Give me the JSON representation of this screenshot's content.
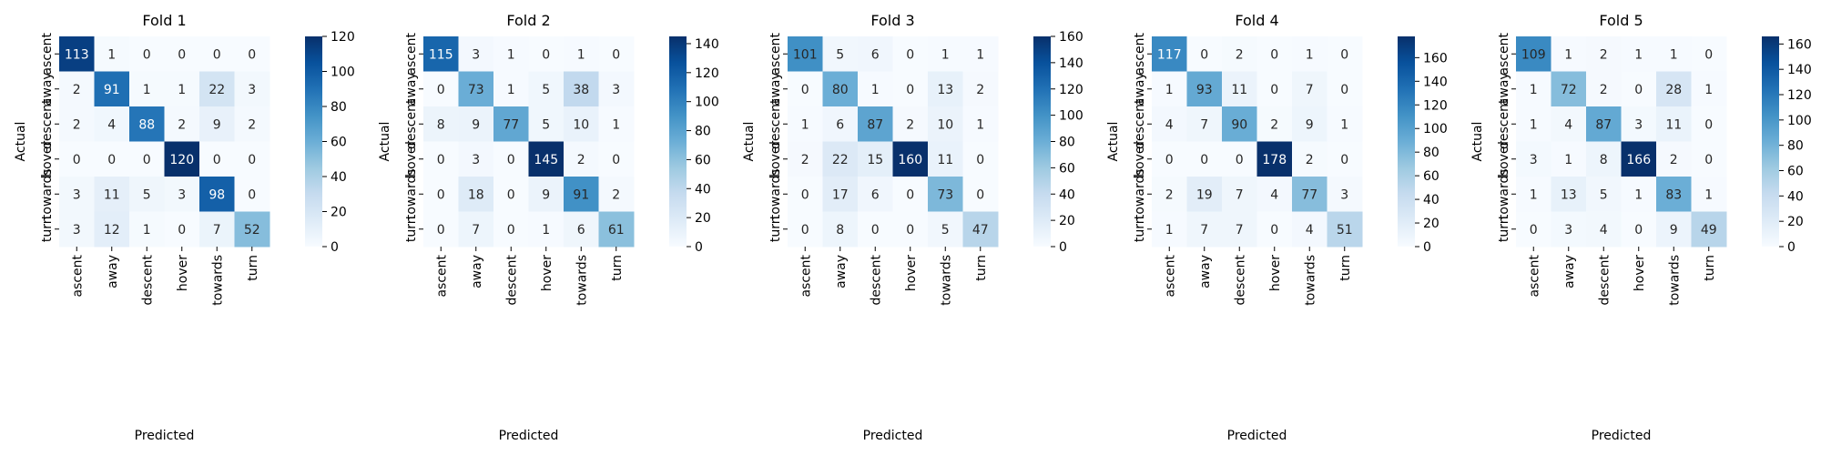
{
  "chart_data": [
    {
      "type": "heatmap",
      "title": "Fold 1",
      "xlabel": "Predicted",
      "ylabel": "Actual",
      "x_categories": [
        "ascent",
        "away",
        "descent",
        "hover",
        "towards",
        "turn"
      ],
      "y_categories": [
        "ascent",
        "away",
        "descent",
        "hover",
        "towards",
        "turn"
      ],
      "values": [
        [
          113,
          1,
          0,
          0,
          0,
          0
        ],
        [
          2,
          91,
          1,
          1,
          22,
          3
        ],
        [
          2,
          4,
          88,
          2,
          9,
          2
        ],
        [
          0,
          0,
          0,
          120,
          0,
          0
        ],
        [
          3,
          11,
          5,
          3,
          98,
          0
        ],
        [
          3,
          12,
          1,
          0,
          7,
          52
        ]
      ],
      "colorbar": {
        "colormap": "Blues",
        "range": [
          0,
          120
        ],
        "ticks": [
          0,
          20,
          40,
          60,
          80,
          100,
          120
        ]
      }
    },
    {
      "type": "heatmap",
      "title": "Fold 2",
      "xlabel": "Predicted",
      "ylabel": "Actual",
      "x_categories": [
        "ascent",
        "away",
        "descent",
        "hover",
        "towards",
        "turn"
      ],
      "y_categories": [
        "ascent",
        "away",
        "descent",
        "hover",
        "towards",
        "turn"
      ],
      "values": [
        [
          115,
          3,
          1,
          0,
          1,
          0
        ],
        [
          0,
          73,
          1,
          5,
          38,
          3
        ],
        [
          8,
          9,
          77,
          5,
          10,
          1
        ],
        [
          0,
          3,
          0,
          145,
          2,
          0
        ],
        [
          0,
          18,
          0,
          9,
          91,
          2
        ],
        [
          0,
          7,
          0,
          1,
          6,
          61
        ]
      ],
      "colorbar": {
        "colormap": "Blues",
        "range": [
          0,
          145
        ],
        "ticks": [
          0,
          20,
          40,
          60,
          80,
          100,
          120,
          140
        ]
      }
    },
    {
      "type": "heatmap",
      "title": "Fold 3",
      "xlabel": "Predicted",
      "ylabel": "Actual",
      "x_categories": [
        "ascent",
        "away",
        "descent",
        "hover",
        "towards",
        "turn"
      ],
      "y_categories": [
        "ascent",
        "away",
        "descent",
        "hover",
        "towards",
        "turn"
      ],
      "values": [
        [
          101,
          5,
          6,
          0,
          1,
          1
        ],
        [
          0,
          80,
          1,
          0,
          13,
          2
        ],
        [
          1,
          6,
          87,
          2,
          10,
          1
        ],
        [
          2,
          22,
          15,
          160,
          11,
          0
        ],
        [
          0,
          17,
          6,
          0,
          73,
          0
        ],
        [
          0,
          8,
          0,
          0,
          5,
          47
        ]
      ],
      "colorbar": {
        "colormap": "Blues",
        "range": [
          0,
          160
        ],
        "ticks": [
          0,
          20,
          40,
          60,
          80,
          100,
          120,
          140,
          160
        ]
      }
    },
    {
      "type": "heatmap",
      "title": "Fold 4",
      "xlabel": "Predicted",
      "ylabel": "Actual",
      "x_categories": [
        "ascent",
        "away",
        "descent",
        "hover",
        "towards",
        "turn"
      ],
      "y_categories": [
        "ascent",
        "away",
        "descent",
        "hover",
        "towards",
        "turn"
      ],
      "values": [
        [
          117,
          0,
          2,
          0,
          1,
          0
        ],
        [
          1,
          93,
          11,
          0,
          7,
          0
        ],
        [
          4,
          7,
          90,
          2,
          9,
          1
        ],
        [
          0,
          0,
          0,
          178,
          2,
          0
        ],
        [
          2,
          19,
          7,
          4,
          77,
          3
        ],
        [
          1,
          7,
          7,
          0,
          4,
          51
        ]
      ],
      "colorbar": {
        "colormap": "Blues",
        "range": [
          0,
          178
        ],
        "ticks": [
          0,
          20,
          40,
          60,
          80,
          100,
          120,
          140,
          160
        ]
      }
    },
    {
      "type": "heatmap",
      "title": "Fold 5",
      "xlabel": "Predicted",
      "ylabel": "Actual",
      "x_categories": [
        "ascent",
        "away",
        "descent",
        "hover",
        "towards",
        "turn"
      ],
      "y_categories": [
        "ascent",
        "away",
        "descent",
        "hover",
        "towards",
        "turn"
      ],
      "values": [
        [
          109,
          1,
          2,
          1,
          1,
          0
        ],
        [
          1,
          72,
          2,
          0,
          28,
          1
        ],
        [
          1,
          4,
          87,
          3,
          11,
          0
        ],
        [
          3,
          1,
          8,
          166,
          2,
          0
        ],
        [
          1,
          13,
          5,
          1,
          83,
          1
        ],
        [
          0,
          3,
          4,
          0,
          9,
          49
        ]
      ],
      "colorbar": {
        "colormap": "Blues",
        "range": [
          0,
          166
        ],
        "ticks": [
          0,
          20,
          40,
          60,
          80,
          100,
          120,
          140,
          160
        ]
      }
    }
  ],
  "colors": {
    "blues_scale": [
      "#f7fbff",
      "#deebf7",
      "#c6dbef",
      "#9ecae1",
      "#6baed6",
      "#4292c6",
      "#2171b5",
      "#08519c",
      "#08306b"
    ]
  }
}
